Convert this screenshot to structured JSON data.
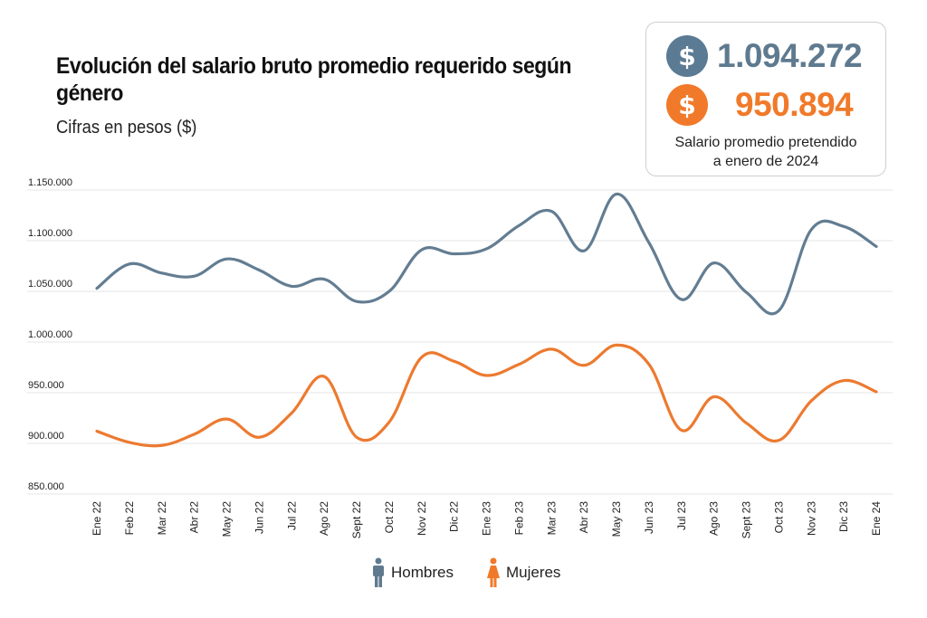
{
  "header": {
    "title": "Evolución del salario bruto promedio requerido según género",
    "subtitle": "Cifras en pesos ($)"
  },
  "summary_card": {
    "men_icon": "dollar-coin-icon",
    "men_value": "1.094.272",
    "women_icon": "dollar-coin-icon",
    "women_value": "950.894",
    "caption_line1": "Salario promedio pretendido",
    "caption_line2": "a enero de 2024",
    "coin_symbol": "$"
  },
  "legend": [
    {
      "label": "Hombres",
      "icon": "male-person-icon",
      "color": "#5f7a8f"
    },
    {
      "label": "Mujeres",
      "icon": "female-person-icon",
      "color": "#f07a2a"
    }
  ],
  "colors": {
    "men": "#637d92",
    "women": "#ec7a30",
    "grid": "#e6e6e6"
  },
  "chart_data": {
    "type": "line",
    "title": "Evolución del salario bruto promedio requerido según género",
    "subtitle": "Cifras en pesos ($)",
    "xlabel": "",
    "ylabel": "",
    "ylim": [
      850000,
      1150000
    ],
    "yticks": [
      850000,
      900000,
      950000,
      1000000,
      1050000,
      1100000,
      1150000
    ],
    "ytick_labels": [
      "850.000",
      "900.000",
      "950.000",
      "1.000.000",
      "1.050.000",
      "1.100.000",
      "1.150.000"
    ],
    "grid": true,
    "legend_position": "bottom-center",
    "categories": [
      "Ene 22",
      "Feb 22",
      "Mar 22",
      "Abr 22",
      "May 22",
      "Jun 22",
      "Jul 22",
      "Ago 22",
      "Sept 22",
      "Oct 22",
      "Nov 22",
      "Dic 22",
      "Ene 23",
      "Feb 23",
      "Mar 23",
      "Abr 23",
      "May 23",
      "Jun 23",
      "Jul 23",
      "Ago 23",
      "Sept 23",
      "Oct 23",
      "Nov 23",
      "Dic 23",
      "Ene 24"
    ],
    "series": [
      {
        "name": "Hombres",
        "color": "#637d92",
        "values": [
          1053000,
          1077000,
          1068000,
          1065000,
          1082000,
          1071000,
          1055000,
          1062000,
          1040000,
          1050000,
          1091000,
          1087000,
          1092000,
          1115000,
          1129000,
          1090000,
          1146000,
          1098000,
          1042000,
          1078000,
          1049000,
          1031000,
          1111000,
          1114000,
          1094272
        ]
      },
      {
        "name": "Mujeres",
        "color": "#ec7a30",
        "values": [
          912000,
          901000,
          898000,
          909000,
          924000,
          906000,
          930000,
          966000,
          906000,
          921000,
          985000,
          981000,
          967000,
          978000,
          993000,
          977000,
          997000,
          978000,
          913000,
          946000,
          920000,
          903000,
          942000,
          962000,
          950894
        ]
      }
    ]
  }
}
